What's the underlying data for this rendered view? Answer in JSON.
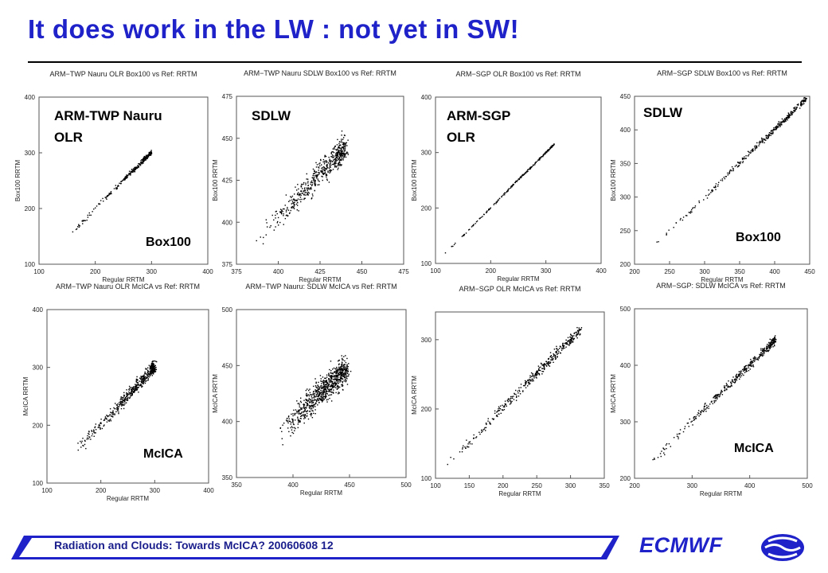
{
  "slide": {
    "title": "It does work in the LW : not yet in SW!",
    "footer_text": "Radiation and Clouds: Towards McICA? 20060608 12",
    "brand": "ECMWF",
    "colors": {
      "title": "#1e22c8",
      "footer_band": "#1e22c8",
      "footer_text": "#1a1e8c"
    }
  },
  "chart_data": [
    {
      "type": "scatter",
      "title": "ARM−TWP Nauru OLR Box100 vs Ref: RRTM",
      "xlabel": "Regular RRTM",
      "ylabel": "Box100 RRTM",
      "xlim": [
        100,
        400
      ],
      "ylim": [
        100,
        400
      ],
      "xticks": [
        "100",
        "200",
        "300",
        "400"
      ],
      "yticks": [
        "100",
        "200",
        "300",
        "400"
      ],
      "annotations": [
        "ARM-TWP Nauru",
        "OLR",
        "Box100"
      ],
      "series": [
        {
          "points": [
            [
              160,
              158
            ],
            [
              180,
              178
            ],
            [
              200,
              201
            ],
            [
              220,
              221
            ],
            [
              240,
              240
            ],
            [
              255,
              256
            ],
            [
              265,
              266
            ],
            [
              275,
              274
            ],
            [
              285,
              286
            ],
            [
              295,
              296
            ],
            [
              300,
              301
            ]
          ]
        }
      ]
    },
    {
      "type": "scatter",
      "title": "ARM−TWP Nauru SDLW Box100 vs Ref: RRTM",
      "xlabel": "Regular RRTM",
      "ylabel": "Box100 RRTM",
      "xlim": [
        375,
        475
      ],
      "ylim": [
        375,
        475
      ],
      "xticks": [
        "375",
        "400",
        "425",
        "450",
        "475"
      ],
      "yticks": [
        "375",
        "400",
        "425",
        "450",
        "475"
      ],
      "annotations": [
        "SDLW"
      ],
      "series": [
        {
          "points": [
            [
              387,
              389
            ],
            [
              395,
              397
            ],
            [
              402,
              405
            ],
            [
              408,
              411
            ],
            [
              413,
              417
            ],
            [
              418,
              422
            ],
            [
              423,
              427
            ],
            [
              428,
              432
            ],
            [
              433,
              437
            ],
            [
              437,
              441
            ],
            [
              440,
              445
            ]
          ]
        }
      ]
    },
    {
      "type": "scatter",
      "title": "ARM−SGP OLR Box100 vs Ref: RRTM",
      "xlabel": "Regular RRTM",
      "ylabel": "Box100 RRTM",
      "xlim": [
        100,
        400
      ],
      "ylim": [
        100,
        400
      ],
      "xticks": [
        "100",
        "200",
        "300",
        "400"
      ],
      "yticks": [
        "100",
        "200",
        "300",
        "400"
      ],
      "annotations": [
        "ARM-SGP",
        "OLR"
      ],
      "series": [
        {
          "points": [
            [
              118,
              119
            ],
            [
              150,
              150
            ],
            [
              180,
              181
            ],
            [
              210,
              210
            ],
            [
              240,
              241
            ],
            [
              270,
              270
            ],
            [
              295,
              295
            ],
            [
              315,
              315
            ]
          ]
        }
      ]
    },
    {
      "type": "scatter",
      "title": "ARM−SGP SDLW Box100 vs Ref: RRTM",
      "xlabel": "Regular RRTM",
      "ylabel": "Box100 RRTM",
      "xlim": [
        200,
        450
      ],
      "ylim": [
        200,
        450
      ],
      "xticks": [
        "200",
        "250",
        "300",
        "350",
        "400",
        "450"
      ],
      "yticks": [
        "200",
        "250",
        "300",
        "350",
        "400",
        "450"
      ],
      "annotations": [
        "SDLW",
        "Box100"
      ],
      "series": [
        {
          "points": [
            [
              232,
              233
            ],
            [
              270,
              270
            ],
            [
              310,
              310
            ],
            [
              350,
              351
            ],
            [
              380,
              381
            ],
            [
              400,
              401
            ],
            [
              420,
              421
            ],
            [
              445,
              446
            ]
          ]
        }
      ]
    },
    {
      "type": "scatter",
      "title": "ARM−TWP Nauru OLR McICA vs Ref: RRTM",
      "xlabel": "Regular RRTM",
      "ylabel": "McICA RRTM",
      "xlim": [
        100,
        400
      ],
      "ylim": [
        100,
        400
      ],
      "xticks": [
        "100",
        "200",
        "300",
        "400"
      ],
      "yticks": [
        "100",
        "200",
        "300",
        "400"
      ],
      "annotations": [
        "McICA"
      ],
      "series": [
        {
          "points": [
            [
              158,
              157
            ],
            [
              175,
              178
            ],
            [
              195,
              196
            ],
            [
              215,
              216
            ],
            [
              235,
              236
            ],
            [
              250,
              251
            ],
            [
              265,
              266
            ],
            [
              280,
              281
            ],
            [
              295,
              298
            ],
            [
              300,
              302
            ]
          ]
        }
      ]
    },
    {
      "type": "scatter",
      "title": "ARM−TWP Nauru: SDLW McICA vs Ref: RRTM",
      "xlabel": "Regular RRTM",
      "ylabel": "McICA RRTM",
      "xlim": [
        350,
        500
      ],
      "ylim": [
        350,
        500
      ],
      "xticks": [
        "350",
        "400",
        "450",
        "500"
      ],
      "yticks": [
        "350",
        "400",
        "450",
        "500"
      ],
      "annotations": [],
      "series": [
        {
          "points": [
            [
              390,
              391
            ],
            [
              400,
              401
            ],
            [
              410,
              412
            ],
            [
              420,
              422
            ],
            [
              430,
              431
            ],
            [
              440,
              441
            ],
            [
              447,
              447
            ]
          ]
        }
      ]
    },
    {
      "type": "scatter",
      "title": "ARM−SGP OLR McICA vs Ref: RRTM",
      "xlabel": "Regular RRTM",
      "ylabel": "McICA RRTM",
      "xlim": [
        100,
        350
      ],
      "ylim": [
        100,
        340
      ],
      "xticks": [
        "100",
        "150",
        "200",
        "250",
        "300",
        "350"
      ],
      "yticks": [
        "100",
        "200",
        "300"
      ],
      "annotations": [],
      "series": [
        {
          "points": [
            [
              118,
              120
            ],
            [
              150,
              152
            ],
            [
              180,
              181
            ],
            [
              210,
              212
            ],
            [
              240,
              242
            ],
            [
              265,
              266
            ],
            [
              290,
              291
            ],
            [
              315,
              315
            ]
          ]
        }
      ]
    },
    {
      "type": "scatter",
      "title": "ARM−SGP: SDLW McICA vs Ref: RRTM",
      "xlabel": "Regular RRTM",
      "ylabel": "McICA RRTM",
      "xlim": [
        200,
        500
      ],
      "ylim": [
        200,
        500
      ],
      "xticks": [
        "200",
        "300",
        "400",
        "500"
      ],
      "yticks": [
        "200",
        "300",
        "400",
        "500"
      ],
      "annotations": [
        "McICA"
      ],
      "series": [
        {
          "points": [
            [
              232,
              233
            ],
            [
              260,
              261
            ],
            [
              300,
              301
            ],
            [
              340,
              341
            ],
            [
              370,
              371
            ],
            [
              400,
              401
            ],
            [
              430,
              431
            ],
            [
              445,
              446
            ]
          ]
        }
      ]
    }
  ]
}
